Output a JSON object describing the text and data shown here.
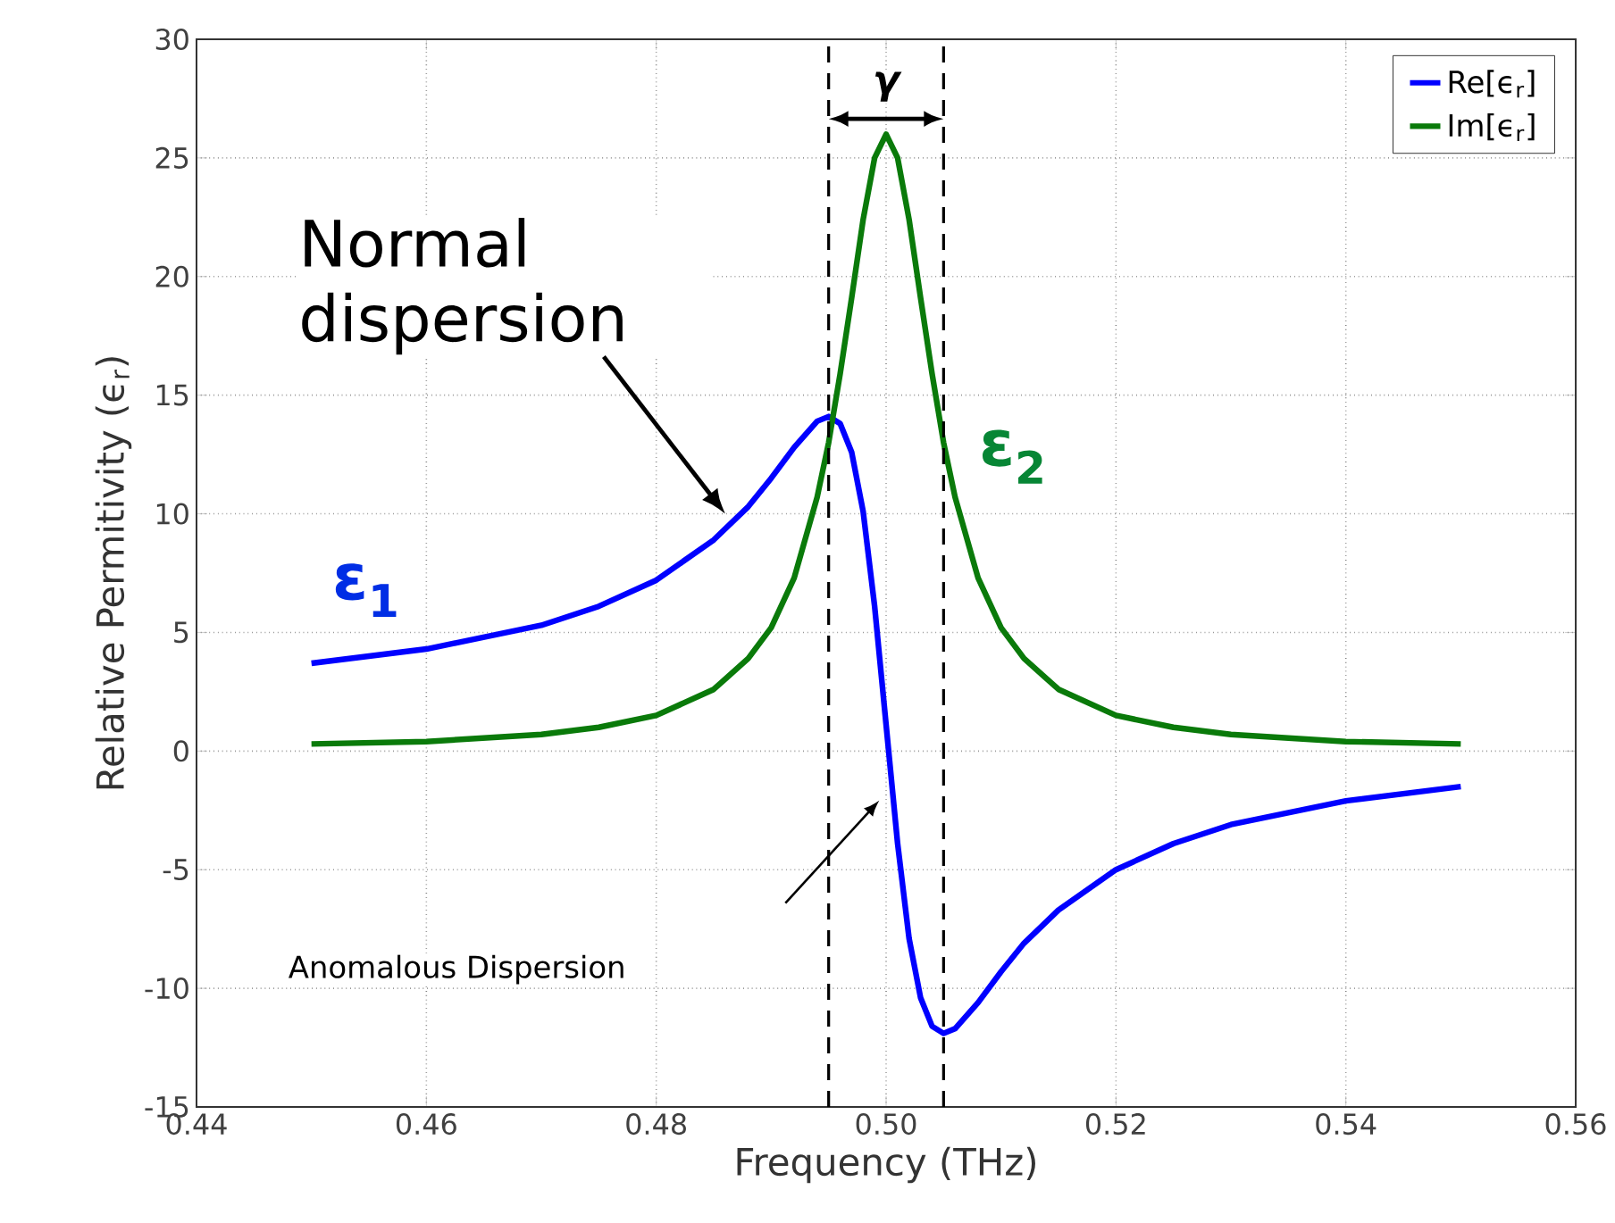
{
  "chart_data": {
    "type": "line",
    "xlabel": "Frequency (THz)",
    "ylabel": "Relative Permitivity (ϵ$_{r}$)",
    "xlim": [
      0.44,
      0.56
    ],
    "ylim": [
      -15,
      30
    ],
    "xticks": [
      {
        "value": 0.44,
        "label": "0.44"
      },
      {
        "value": 0.46,
        "label": "0.46"
      },
      {
        "value": 0.48,
        "label": "0.48"
      },
      {
        "value": 0.5,
        "label": "0.50"
      },
      {
        "value": 0.52,
        "label": "0.52"
      },
      {
        "value": 0.54,
        "label": "0.54"
      },
      {
        "value": 0.56,
        "label": "0.56"
      }
    ],
    "yticks": [
      -15,
      -10,
      -5,
      0,
      5,
      10,
      15,
      20,
      25,
      30
    ],
    "grid": true,
    "legend": "top right",
    "line_style": "solid",
    "marker": "none",
    "x": [
      0.45,
      0.46,
      0.47,
      0.475,
      0.48,
      0.485,
      0.488,
      0.49,
      0.492,
      0.494,
      0.495,
      0.496,
      0.497,
      0.498,
      0.499,
      0.5,
      0.501,
      0.502,
      0.503,
      0.504,
      0.505,
      0.506,
      0.508,
      0.51,
      0.512,
      0.515,
      0.52,
      0.525,
      0.53,
      0.54,
      0.55
    ],
    "series": [
      {
        "name": "Re[ϵ$_{r}$]",
        "color": "#0000ff",
        "values": [
          3.7,
          4.3,
          5.3,
          6.1,
          7.2,
          8.9,
          10.3,
          11.5,
          12.8,
          13.9,
          14.1,
          13.8,
          12.6,
          10.1,
          6.1,
          1.1,
          -3.9,
          -7.9,
          -10.4,
          -11.6,
          -11.9,
          -11.7,
          -10.6,
          -9.3,
          -8.1,
          -6.7,
          -5.0,
          -3.9,
          -3.1,
          -2.1,
          -1.5
        ]
      },
      {
        "name": "Im[ϵ$_{r}$]",
        "color": "#0a7a0a",
        "values": [
          0.3,
          0.4,
          0.7,
          1.0,
          1.5,
          2.6,
          3.9,
          5.2,
          7.3,
          10.7,
          13,
          15.9,
          19.1,
          22.4,
          25,
          26,
          25,
          22.4,
          19.1,
          15.9,
          13,
          10.7,
          7.3,
          5.2,
          3.9,
          2.6,
          1.5,
          1.0,
          0.7,
          0.4,
          0.3
        ]
      }
    ],
    "ref_lines": [
      {
        "axis": "x",
        "value": 0.495,
        "color": "#000000",
        "line_style": "dashed"
      },
      {
        "axis": "x",
        "value": 0.505,
        "color": "#000000",
        "line_style": "dashed"
      }
    ],
    "annotations": [
      {
        "text": "Normal dispersion",
        "x": 0.486,
        "y": 10
      },
      "Anomalous Dispersion",
      "ε$_{1}$",
      "ε$_{2}$",
      {
        "text": "γ",
        "x": 0.5,
        "y": 28
      }
    ]
  }
}
